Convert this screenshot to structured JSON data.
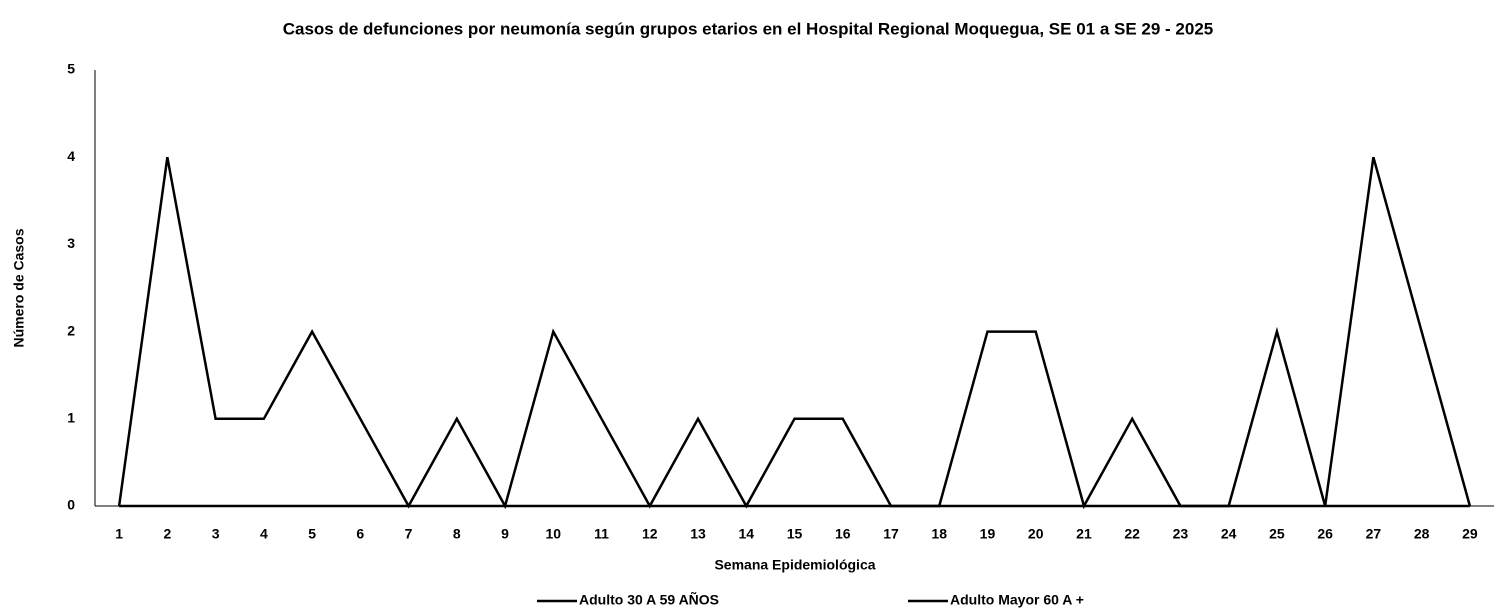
{
  "chart_data": {
    "type": "line",
    "title": "Casos de defunciones por neumonía según grupos etarios en el Hospital Regional Moquegua, SE 01 a SE 29 - 2025",
    "x_label": "Semana Epidemiológica",
    "y_label": "Número de Casos",
    "categories": [
      "1",
      "2",
      "3",
      "4",
      "5",
      "6",
      "7",
      "8",
      "9",
      "10",
      "11",
      "12",
      "13",
      "14",
      "15",
      "16",
      "17",
      "18",
      "19",
      "20",
      "21",
      "22",
      "23",
      "24",
      "25",
      "26",
      "27",
      "28",
      "29"
    ],
    "series": [
      {
        "name": "Adulto 30 A 59 AÑOS",
        "color": "#000000",
        "values": [
          0,
          0,
          0,
          0,
          0,
          0,
          0,
          0,
          0,
          0,
          0,
          0,
          0,
          0,
          0,
          0,
          0,
          0,
          0,
          0,
          0,
          0,
          0,
          0,
          0,
          0,
          0,
          0,
          0
        ]
      },
      {
        "name": "Adulto Mayor 60 A +",
        "color": "#000000",
        "values": [
          0,
          4,
          1,
          1,
          2,
          1,
          0,
          1,
          0,
          2,
          1,
          0,
          1,
          0,
          1,
          1,
          0,
          0,
          2,
          2,
          0,
          1,
          0,
          0,
          2,
          0,
          4,
          2,
          0
        ]
      }
    ],
    "ylim": [
      0,
      5
    ],
    "yticks": [
      0,
      1,
      2,
      3,
      4,
      5
    ],
    "grid": false,
    "legend": "bottom"
  }
}
